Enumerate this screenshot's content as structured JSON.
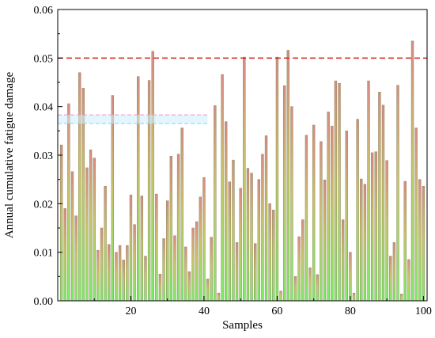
{
  "chart_data": {
    "type": "bar",
    "xlabel": "Samples",
    "ylabel": "Annual cumulative fatigue damage",
    "xlim": [
      0,
      101
    ],
    "ylim": [
      0,
      0.06
    ],
    "x_ticks": [
      20,
      40,
      60,
      80,
      100
    ],
    "x_tick_labels": [
      "20",
      "40",
      "60",
      "80",
      "100"
    ],
    "y_ticks": [
      0,
      0.01,
      0.02,
      0.03,
      0.04,
      0.05,
      0.06
    ],
    "y_tick_labels": [
      "0.00",
      "0.01",
      "0.02",
      "0.03",
      "0.04",
      "0.05",
      "0.06"
    ],
    "threshold": 0.05,
    "threshold_color": "#cc2222",
    "reference_band": [
      0.0365,
      0.0383
    ],
    "bar_gradient": {
      "top": "#d98a86",
      "middle": "#c9c46a",
      "bottom": "#7cec6a"
    },
    "bar_outline": "#8a8a5a",
    "grid": false,
    "samples": [
      1,
      2,
      3,
      4,
      5,
      6,
      7,
      8,
      9,
      10,
      11,
      12,
      13,
      14,
      15,
      16,
      17,
      18,
      19,
      20,
      21,
      22,
      23,
      24,
      25,
      26,
      27,
      28,
      29,
      30,
      31,
      32,
      33,
      34,
      35,
      36,
      37,
      38,
      39,
      40,
      41,
      42,
      43,
      44,
      45,
      46,
      47,
      48,
      49,
      50,
      51,
      52,
      53,
      54,
      55,
      56,
      57,
      58,
      59,
      60,
      61,
      62,
      63,
      64,
      65,
      66,
      67,
      68,
      69,
      70,
      71,
      72,
      73,
      74,
      75,
      76,
      77,
      78,
      79,
      80,
      81,
      82,
      83,
      84,
      85,
      86,
      87,
      88,
      89,
      90,
      91,
      92,
      93,
      94,
      95,
      96,
      97,
      98,
      99,
      100
    ],
    "values": [
      0.0321,
      0.019,
      0.0406,
      0.0266,
      0.0175,
      0.047,
      0.0438,
      0.0274,
      0.0311,
      0.0294,
      0.0104,
      0.015,
      0.0236,
      0.0116,
      0.0423,
      0.01,
      0.0114,
      0.0084,
      0.0114,
      0.0218,
      0.0157,
      0.0462,
      0.0216,
      0.0092,
      0.0454,
      0.0514,
      0.022,
      0.0055,
      0.0128,
      0.0206,
      0.0298,
      0.0134,
      0.0302,
      0.0356,
      0.0111,
      0.006,
      0.015,
      0.0163,
      0.0214,
      0.0254,
      0.0045,
      0.0131,
      0.0402,
      0.0016,
      0.0466,
      0.0369,
      0.0245,
      0.029,
      0.012,
      0.0232,
      0.0502,
      0.0273,
      0.0263,
      0.0118,
      0.025,
      0.0302,
      0.034,
      0.02,
      0.0187,
      0.0502,
      0.002,
      0.0443,
      0.0516,
      0.04,
      0.005,
      0.0132,
      0.0167,
      0.0341,
      0.0068,
      0.0362,
      0.0054,
      0.0328,
      0.0249,
      0.0389,
      0.036,
      0.0453,
      0.0448,
      0.0167,
      0.035,
      0.01,
      0.0016,
      0.0374,
      0.0251,
      0.024,
      0.0453,
      0.0305,
      0.0307,
      0.043,
      0.0403,
      0.0289,
      0.0092,
      0.012,
      0.0444,
      0.0014,
      0.0246,
      0.0085,
      0.0535,
      0.0356,
      0.025,
      0.0236
    ]
  }
}
